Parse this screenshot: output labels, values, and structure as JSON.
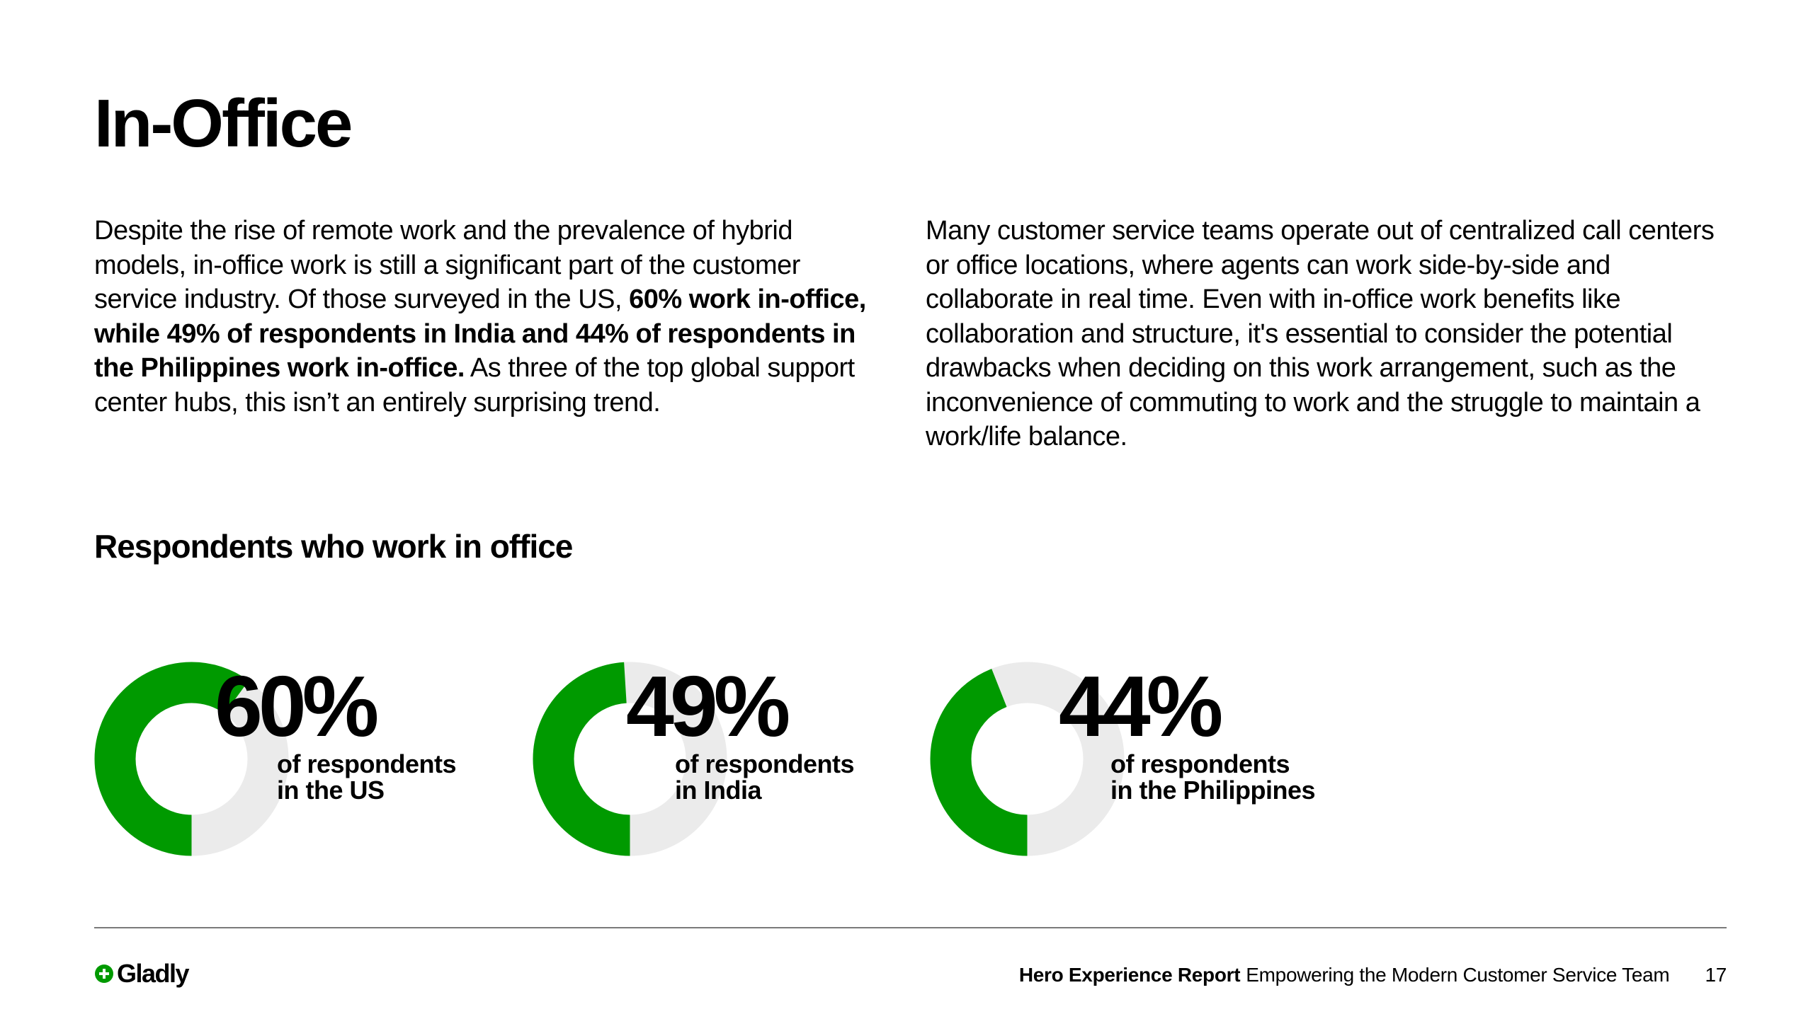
{
  "page": {
    "title": "In-Office"
  },
  "intro": {
    "left_segments": [
      {
        "text": "Despite the rise of remote work and the prevalence of hybrid models, in-office work is still a significant part of the customer service industry. Of those surveyed in the US, ",
        "bold": false
      },
      {
        "text": "60% work in-office, while 49% of respondents in India and 44% of respondents in the Philippines work in-office.",
        "bold": true
      },
      {
        "text": " As three of the top global support center hubs, this isn’t an entirely surprising trend.",
        "bold": false
      }
    ],
    "right_text": "Many customer service teams operate out of centralized call centers or office locations, where agents can work side-by-side and collaborate in real time. Even with in-office work benefits like collaboration and structure, it's essential to consider the potential drawbacks when deciding on this work arrangement, such as the inconvenience of commuting to work and the struggle to maintain a work/life balance."
  },
  "chart_data": {
    "type": "pie",
    "title": "Respondents who work in office",
    "colors": {
      "filled": "#009a00",
      "remainder": "#ebebeb"
    },
    "items": [
      {
        "value": 60,
        "label": "60%",
        "caption_line1": "of respondents",
        "caption_line2": "in the US"
      },
      {
        "value": 49,
        "label": "49%",
        "caption_line1": "of respondents",
        "caption_line2": "in India"
      },
      {
        "value": 44,
        "label": "44%",
        "caption_line1": "of respondents",
        "caption_line2": "in the Philippines"
      }
    ]
  },
  "footer": {
    "logo_text": "Gladly",
    "logo_icon": "plus-circle-icon",
    "report_title": "Hero Experience Report",
    "report_subtitle": "Empowering the Modern Customer Service Team",
    "page_number": "17"
  }
}
